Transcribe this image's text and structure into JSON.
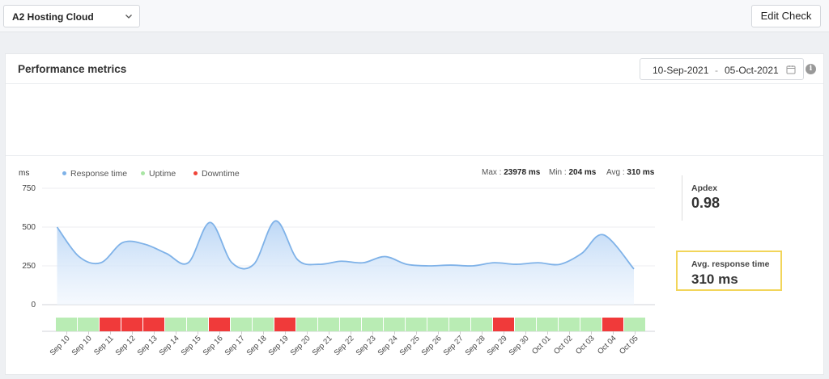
{
  "header": {
    "selected_check": "A2 Hosting Cloud",
    "edit_button_label": "Edit Check"
  },
  "card": {
    "title": "Performance metrics",
    "date_from": "10-Sep-2021",
    "date_separator": "-",
    "date_to": "05-Oct-2021",
    "info_glyph": "i"
  },
  "chart_header": {
    "unit": "ms",
    "legend": [
      {
        "label": "Response time",
        "color": "#7fb2e8"
      },
      {
        "label": "Uptime",
        "color": "#a9e5a4"
      },
      {
        "label": "Downtime",
        "color": "#f04438"
      }
    ],
    "max_label": "Max :",
    "max_value": "23978 ms",
    "min_label": "Min :",
    "min_value": "204 ms",
    "avg_label": "Avg :",
    "avg_value": "310 ms"
  },
  "side": {
    "apdex_label": "Apdex",
    "apdex_value": "0.98",
    "avg_response_label": "Avg. response time",
    "avg_response_value": "310 ms"
  },
  "chart_data": {
    "type": "area",
    "x": [
      "Sep 10",
      "Sep 10",
      "Sep 11",
      "Sep 12",
      "Sep 13",
      "Sep 14",
      "Sep 15",
      "Sep 16",
      "Sep 17",
      "Sep 18",
      "Sep 19",
      "Sep 20",
      "Sep 21",
      "Sep 22",
      "Sep 23",
      "Sep 24",
      "Sep 25",
      "Sep 26",
      "Sep 27",
      "Sep 28",
      "Sep 29",
      "Sep 30",
      "Oct 01",
      "Oct 02",
      "Oct 03",
      "Oct 04",
      "Oct 05"
    ],
    "ylabel": "ms",
    "yticks": [
      0,
      250,
      500,
      750
    ],
    "ylim": [
      0,
      750
    ],
    "response_time": [
      500,
      310,
      270,
      400,
      390,
      330,
      270,
      530,
      270,
      260,
      540,
      290,
      260,
      280,
      270,
      310,
      260,
      250,
      255,
      250,
      270,
      260,
      270,
      260,
      330,
      450,
      230
    ],
    "status": [
      "up",
      "up",
      "down",
      "down",
      "down",
      "up",
      "up",
      "down",
      "up",
      "up",
      "down",
      "up",
      "up",
      "up",
      "up",
      "up",
      "up",
      "up",
      "up",
      "up",
      "down",
      "up",
      "up",
      "up",
      "up",
      "down",
      "up"
    ],
    "colors": {
      "line": "#7fb2e8",
      "up": "#b9ecb4",
      "down": "#f03a3a"
    },
    "grid": true
  }
}
